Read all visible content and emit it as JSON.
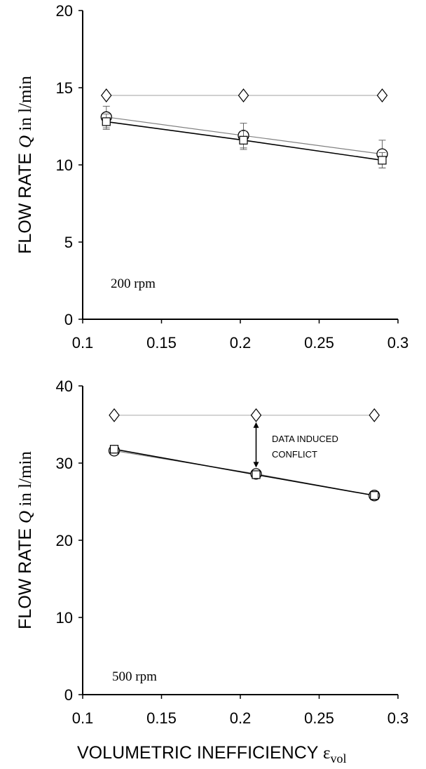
{
  "xlabel": {
    "text": "VOLUMETRIC INEFFICIENCY ",
    "symbol": "ε",
    "subscript": "vol"
  },
  "chart_data": [
    {
      "type": "line",
      "ylabel": {
        "text": "FLOW RATE ",
        "symbol": "Q",
        "unit": " in l/min"
      },
      "annotation_label": "200 rpm",
      "xlim": [
        0.1,
        0.3
      ],
      "ylim": [
        0,
        20
      ],
      "xticks": [
        "0.1",
        "0.15",
        "0.2",
        "0.25",
        "0.3"
      ],
      "yticks": [
        "0",
        "5",
        "10",
        "15",
        "20"
      ],
      "series": [
        {
          "marker": "diamond",
          "color": "#b3b3b3",
          "x": [
            0.115,
            0.202,
            0.29
          ],
          "y": [
            14.5,
            14.5,
            14.5
          ],
          "err": [
            0,
            0,
            0
          ]
        },
        {
          "marker": "circle",
          "color": "#808080",
          "x": [
            0.115,
            0.202,
            0.29
          ],
          "y": [
            13.1,
            11.9,
            10.7
          ],
          "err": [
            0.7,
            0.8,
            0.9
          ]
        },
        {
          "marker": "square",
          "color": "#000000",
          "x": [
            0.115,
            0.202,
            0.29
          ],
          "y": [
            12.8,
            11.6,
            10.3
          ],
          "err": [
            0.5,
            0.6,
            0.5
          ]
        }
      ]
    },
    {
      "type": "line",
      "ylabel": {
        "text": "FLOW RATE ",
        "symbol": "Q",
        "unit": " in l/min"
      },
      "annotation_label": "500 rpm",
      "arrow_label": [
        "DATA INDUCED",
        "CONFLICT"
      ],
      "xlim": [
        0.1,
        0.3
      ],
      "ylim": [
        0,
        40
      ],
      "xticks": [
        "0.1",
        "0.15",
        "0.2",
        "0.25",
        "0.3"
      ],
      "yticks": [
        "0",
        "10",
        "20",
        "30",
        "40"
      ],
      "series": [
        {
          "marker": "diamond",
          "color": "#b3b3b3",
          "x": [
            0.12,
            0.21,
            0.285
          ],
          "y": [
            36.2,
            36.2,
            36.2
          ],
          "err": [
            0,
            0,
            0
          ]
        },
        {
          "marker": "circle",
          "color": "#808080",
          "x": [
            0.12,
            0.21,
            0.285
          ],
          "y": [
            31.6,
            28.6,
            25.8
          ],
          "err": [
            0.5,
            0.5,
            0.5
          ]
        },
        {
          "marker": "square",
          "color": "#000000",
          "x": [
            0.12,
            0.21,
            0.285
          ],
          "y": [
            31.8,
            28.5,
            25.8
          ],
          "err": [
            0.4,
            0.4,
            0.4
          ]
        }
      ]
    }
  ]
}
